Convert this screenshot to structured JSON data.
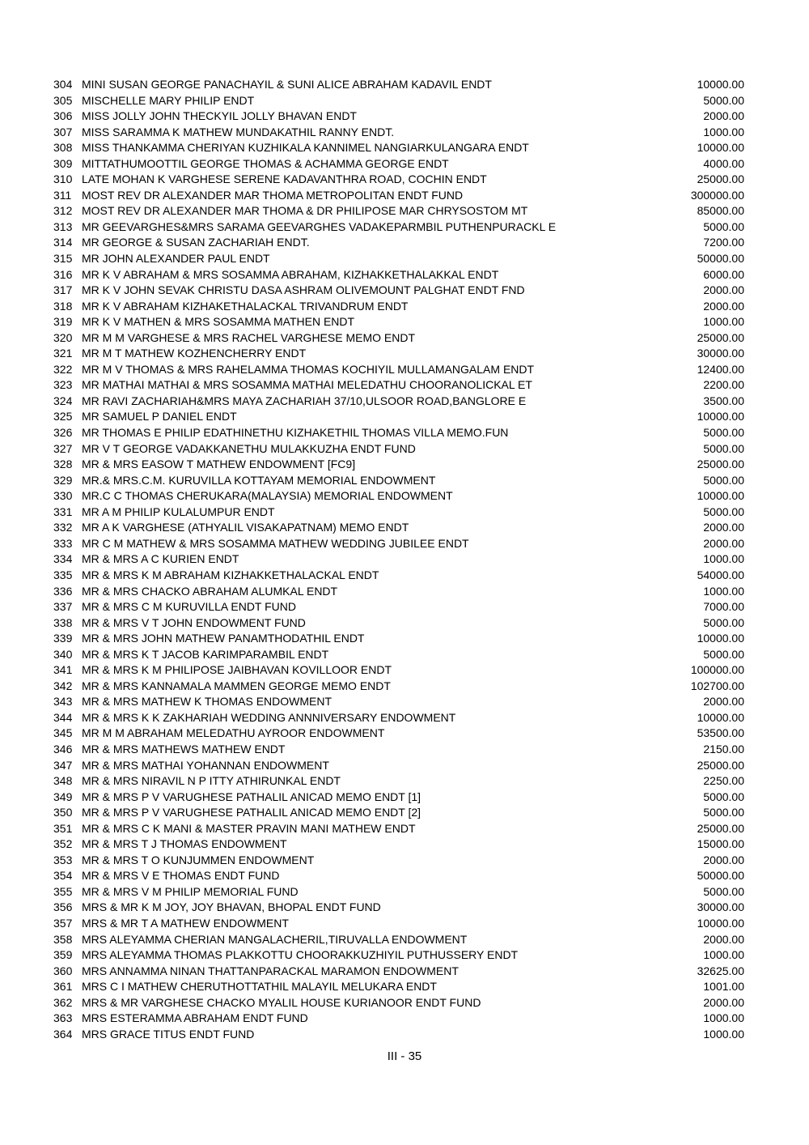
{
  "rows": [
    [
      "304",
      "MINI SUSAN GEORGE PANACHAYIL & SUNI ALICE ABRAHAM KADAVIL ENDT",
      "10000.00"
    ],
    [
      "305",
      "MISCHELLE MARY PHILIP ENDT",
      "5000.00"
    ],
    [
      "306",
      "MISS JOLLY JOHN THECKYIL JOLLY BHAVAN ENDT",
      "2000.00"
    ],
    [
      "307",
      "MISS SARAMMA K MATHEW MUNDAKATHIL RANNY ENDT.",
      "1000.00"
    ],
    [
      "308",
      "MISS THANKAMMA CHERIYAN KUZHIKALA KANNIMEL NANGIARKULANGARA ENDT",
      "10000.00"
    ],
    [
      "309",
      "MITTATHUMOOTTIL GEORGE THOMAS & ACHAMMA GEORGE ENDT",
      "4000.00"
    ],
    [
      "310",
      "LATE MOHAN K VARGHESE SERENE KADAVANTHRA ROAD, COCHIN ENDT",
      "25000.00"
    ],
    [
      "311",
      "MOST REV DR ALEXANDER MAR THOMA METROPOLITAN ENDT FUND",
      "300000.00"
    ],
    [
      "312",
      "MOST REV DR ALEXANDER MAR THOMA & DR PHILIPOSE MAR CHRYSOSTOM MT",
      "85000.00"
    ],
    [
      "313",
      "MR GEEVARGHES&MRS SARAMA GEEVARGHES VADAKEPARMBIL PUTHENPURACKL E",
      "5000.00"
    ],
    [
      "314",
      "MR GEORGE & SUSAN ZACHARIAH ENDT.",
      "7200.00"
    ],
    [
      "315",
      "MR JOHN ALEXANDER PAUL ENDT",
      "50000.00"
    ],
    [
      "316",
      "MR K V ABRAHAM & MRS SOSAMMA ABRAHAM, KIZHAKKETHALAKKAL ENDT",
      "6000.00"
    ],
    [
      "317",
      "MR K V JOHN SEVAK CHRISTU DASA ASHRAM OLIVEMOUNT PALGHAT ENDT FND",
      "2000.00"
    ],
    [
      "318",
      "MR K V ABRAHAM KIZHAKETHALACKAL TRIVANDRUM ENDT",
      "2000.00"
    ],
    [
      "319",
      "MR K V MATHEN & MRS SOSAMMA MATHEN ENDT",
      "1000.00"
    ],
    [
      "320",
      "MR M M VARGHESE & MRS RACHEL VARGHESE MEMO ENDT",
      "25000.00"
    ],
    [
      "321",
      "MR M T MATHEW KOZHENCHERRY ENDT",
      "30000.00"
    ],
    [
      "322",
      "MR M V THOMAS & MRS RAHELAMMA THOMAS KOCHIYIL MULLAMANGALAM ENDT",
      "12400.00"
    ],
    [
      "323",
      "MR MATHAI MATHAI & MRS SOSAMMA MATHAI MELEDATHU CHOORANOLICKAL ET",
      "2200.00"
    ],
    [
      "324",
      "MR RAVI ZACHARIAH&MRS MAYA ZACHARIAH 37/10,ULSOOR ROAD,BANGLORE E",
      "3500.00"
    ],
    [
      "325",
      "MR SAMUEL P DANIEL ENDT",
      "10000.00"
    ],
    [
      "326",
      "MR THOMAS E PHILIP EDATHINETHU KIZHAKETHIL THOMAS VILLA MEMO.FUN",
      "5000.00"
    ],
    [
      "327",
      "MR V T GEORGE VADAKKANETHU MULAKKUZHA ENDT FUND",
      "5000.00"
    ],
    [
      "328",
      "MR & MRS EASOW T MATHEW ENDOWMENT [FC9]",
      "25000.00"
    ],
    [
      "329",
      "MR.& MRS.C.M. KURUVILLA KOTTAYAM MEMORIAL ENDOWMENT",
      "5000.00"
    ],
    [
      "330",
      "MR.C C THOMAS CHERUKARA(MALAYSIA) MEMORIAL ENDOWMENT",
      "10000.00"
    ],
    [
      "331",
      "MR A M PHILIP KULALUMPUR ENDT",
      "5000.00"
    ],
    [
      "332",
      "MR A K VARGHESE (ATHYALIL VISAKAPATNAM) MEMO ENDT",
      "2000.00"
    ],
    [
      "333",
      "MR C M MATHEW & MRS SOSAMMA MATHEW WEDDING JUBILEE ENDT",
      "2000.00"
    ],
    [
      "334",
      "MR & MRS A C KURIEN ENDT",
      "1000.00"
    ],
    [
      "335",
      "MR & MRS K M ABRAHAM KIZHAKKETHALACKAL ENDT",
      "54000.00"
    ],
    [
      "336",
      "MR & MRS CHACKO ABRAHAM ALUMKAL ENDT",
      "1000.00"
    ],
    [
      "337",
      "MR & MRS C M KURUVILLA ENDT FUND",
      "7000.00"
    ],
    [
      "338",
      "MR & MRS V T JOHN ENDOWMENT FUND",
      "5000.00"
    ],
    [
      "339",
      "MR & MRS JOHN MATHEW PANAMTHODATHIL ENDT",
      "10000.00"
    ],
    [
      "340",
      "MR & MRS K T JACOB KARIMPARAMBIL ENDT",
      "5000.00"
    ],
    [
      "341",
      "MR & MRS K M PHILIPOSE JAIBHAVAN KOVILLOOR ENDT",
      "100000.00"
    ],
    [
      "342",
      "MR & MRS KANNAMALA MAMMEN GEORGE MEMO ENDT",
      "102700.00"
    ],
    [
      "343",
      "MR & MRS MATHEW K THOMAS ENDOWMENT",
      "2000.00"
    ],
    [
      "344",
      "MR & MRS K K ZAKHARIAH WEDDING ANNNIVERSARY ENDOWMENT",
      "10000.00"
    ],
    [
      "345",
      "MR M M ABRAHAM MELEDATHU AYROOR ENDOWMENT",
      "53500.00"
    ],
    [
      "346",
      "MR & MRS MATHEWS MATHEW ENDT",
      "2150.00"
    ],
    [
      "347",
      "MR & MRS MATHAI YOHANNAN ENDOWMENT",
      "25000.00"
    ],
    [
      "348",
      "MR & MRS NIRAVIL N P ITTY ATHIRUNKAL ENDT",
      "2250.00"
    ],
    [
      "349",
      "MR & MRS P V VARUGHESE PATHALIL ANICAD MEMO ENDT [1]",
      "5000.00"
    ],
    [
      "350",
      "MR & MRS P V VARUGHESE PATHALIL ANICAD MEMO ENDT [2]",
      "5000.00"
    ],
    [
      "351",
      "MR & MRS C K MANI & MASTER PRAVIN MANI MATHEW ENDT",
      "25000.00"
    ],
    [
      "352",
      "MR & MRS T J THOMAS ENDOWMENT",
      "15000.00"
    ],
    [
      "353",
      "MR & MRS T O KUNJUMMEN ENDOWMENT",
      "2000.00"
    ],
    [
      "354",
      "MR & MRS V E THOMAS ENDT FUND",
      "50000.00"
    ],
    [
      "355",
      "MR & MRS V M PHILIP MEMORIAL FUND",
      "5000.00"
    ],
    [
      "356",
      "MRS & MR K M JOY, JOY BHAVAN, BHOPAL ENDT FUND",
      "30000.00"
    ],
    [
      "357",
      "MRS & MR T A MATHEW ENDOWMENT",
      "10000.00"
    ],
    [
      "358",
      "MRS ALEYAMMA CHERIAN MANGALACHERIL,TIRUVALLA ENDOWMENT",
      "2000.00"
    ],
    [
      "359",
      "MRS ALEYAMMA THOMAS PLAKKOTTU CHOORAKKUZHIYIL PUTHUSSERY ENDT",
      "1000.00"
    ],
    [
      "360",
      "MRS ANNAMMA NINAN THATTANPARACKAL MARAMON ENDOWMENT",
      "32625.00"
    ],
    [
      "361",
      "MRS C I MATHEW CHERUTHOTTATHIL MALAYIL MELUKARA ENDT",
      "1001.00"
    ],
    [
      "362",
      "MRS & MR VARGHESE CHACKO MYALIL HOUSE KURIANOOR ENDT FUND",
      "2000.00"
    ],
    [
      "363",
      "MRS ESTERAMMA ABRAHAM ENDT FUND",
      "1000.00"
    ],
    [
      "364",
      "MRS GRACE TITUS ENDT FUND",
      "1000.00"
    ]
  ],
  "footer": {
    "page_number": "III - 35"
  }
}
